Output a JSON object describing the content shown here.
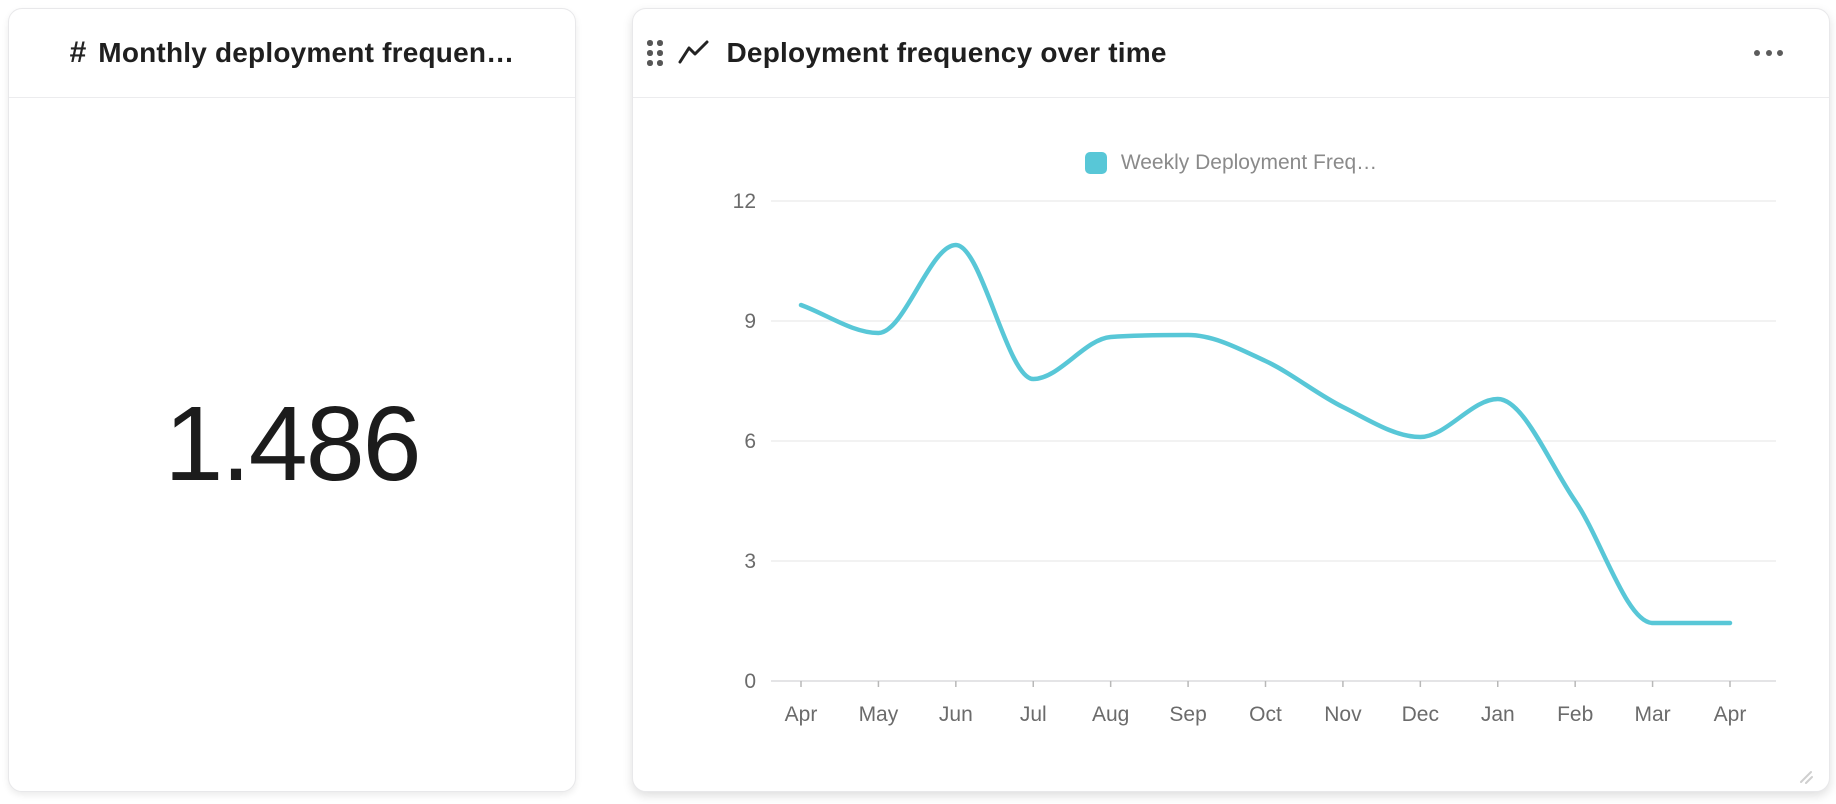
{
  "kpi_card": {
    "icon": "hash-icon",
    "hash_glyph": "#",
    "title": "Monthly deployment frequen…",
    "value": "1.486"
  },
  "chart_card": {
    "icons": [
      "drag-handle-icon",
      "line-chart-icon"
    ],
    "title": "Deployment frequency over time",
    "menu_icon": "ellipsis-icon",
    "resize_icon": "resize-grip-icon"
  },
  "chart_data": {
    "type": "line",
    "title": "Deployment frequency over time",
    "categories": [
      "Apr",
      "May",
      "Jun",
      "Jul",
      "Aug",
      "Sep",
      "Oct",
      "Nov",
      "Dec",
      "Jan",
      "Feb",
      "Mar",
      "Apr"
    ],
    "series": [
      {
        "name": "Weekly Deployment Freq…",
        "values": [
          9.4,
          8.7,
          10.9,
          7.55,
          8.6,
          8.65,
          8.0,
          6.85,
          6.1,
          7.05,
          4.5,
          1.45,
          1.45
        ]
      }
    ],
    "y_ticks": [
      0,
      3,
      6,
      9,
      12
    ],
    "ylim": [
      0,
      12
    ],
    "grid": true,
    "legend_position": "top",
    "smoothing": "monotone",
    "line_color": "#58c7d7"
  },
  "colors": {
    "accent_teal": "#58c7d7",
    "grid_line": "#ededee",
    "axis_line": "#dcdcde",
    "tick_mark": "#b8b8b8",
    "axis_text": "#6b6b6b",
    "title_text": "#1f1f1f",
    "card_border": "#e8e8ea"
  }
}
